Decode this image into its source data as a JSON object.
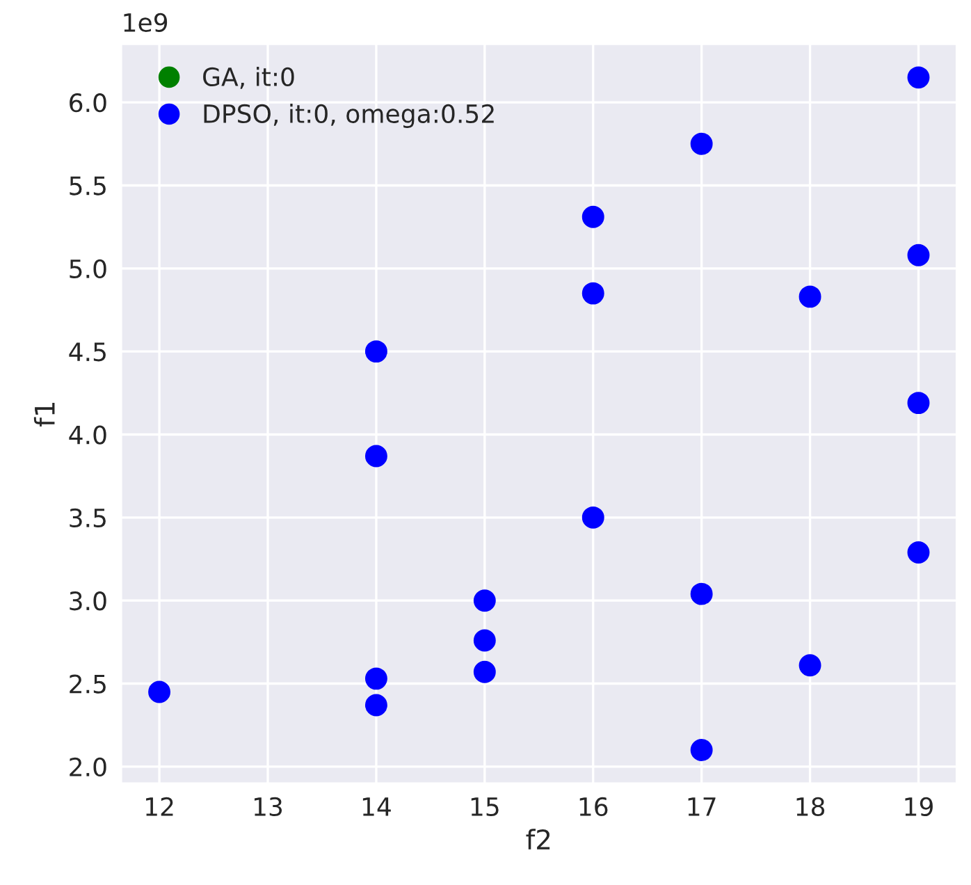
{
  "chart_data": {
    "type": "scatter",
    "xlabel": "f2",
    "ylabel": "f1",
    "annotations": [
      "1e9"
    ],
    "series": [
      {
        "name": "GA, it:0",
        "color": "#008000"
      },
      {
        "name": "DPSO, it:0, omega:0.52",
        "color": "#0000ff",
        "x": [
          12,
          14,
          14,
          14,
          14,
          15,
          15,
          15,
          16,
          16,
          16,
          17,
          17,
          17,
          18,
          18,
          19,
          19,
          19,
          19
        ],
        "values": [
          2.45,
          4.5,
          3.87,
          2.53,
          2.37,
          3.0,
          2.76,
          2.57,
          5.31,
          4.85,
          3.5,
          5.75,
          3.04,
          2.1,
          4.83,
          2.61,
          6.15,
          5.08,
          4.19,
          3.29
        ]
      }
    ],
    "xlim": [
      11.65,
      19.35
    ],
    "ylim": [
      1.9,
      6.35
    ],
    "xticks": [
      12,
      13,
      14,
      15,
      16,
      17,
      18,
      19
    ],
    "yticks": [
      {
        "value": 2,
        "label": "2.0"
      },
      2.5,
      {
        "value": 3,
        "label": "3.0"
      },
      3.5,
      {
        "value": 4,
        "label": "4.0"
      },
      4.5,
      {
        "value": 5,
        "label": "5.0"
      },
      5.5,
      {
        "value": 6,
        "label": "6.0"
      }
    ],
    "grid": true,
    "legend": "top left",
    "marker": "circle"
  }
}
